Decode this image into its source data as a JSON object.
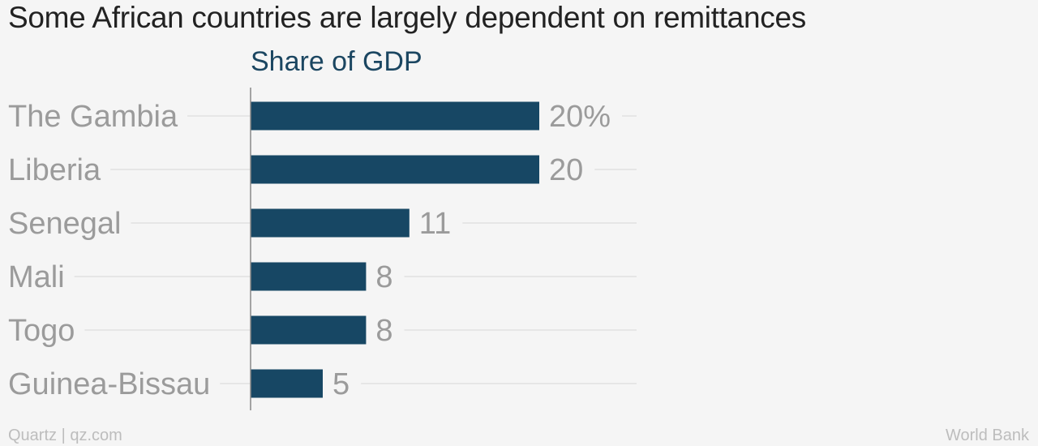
{
  "title": "Some African countries are largely dependent on remittances",
  "footer": {
    "credit": "Quartz | qz.com",
    "source": "World Bank"
  },
  "colors": {
    "bar": "#174764",
    "category_label": "#9b9b9b",
    "value_label": "#9b9b9b",
    "gridline": "#e6e6e6",
    "axis": "#888888",
    "subtitle": "#1b4661"
  },
  "chart_data": {
    "type": "bar",
    "orientation": "horizontal",
    "title": "Share of GDP",
    "categories": [
      "The Gambia",
      "Liberia",
      "Senegal",
      "Mali",
      "Togo",
      "Guinea-Bissau"
    ],
    "values": [
      20,
      20,
      11,
      8,
      8,
      5
    ],
    "value_labels": [
      "20%",
      "20",
      "11",
      "8",
      "8",
      "5"
    ],
    "xlim": [
      0,
      27
    ],
    "grid": true,
    "legend": "none"
  }
}
